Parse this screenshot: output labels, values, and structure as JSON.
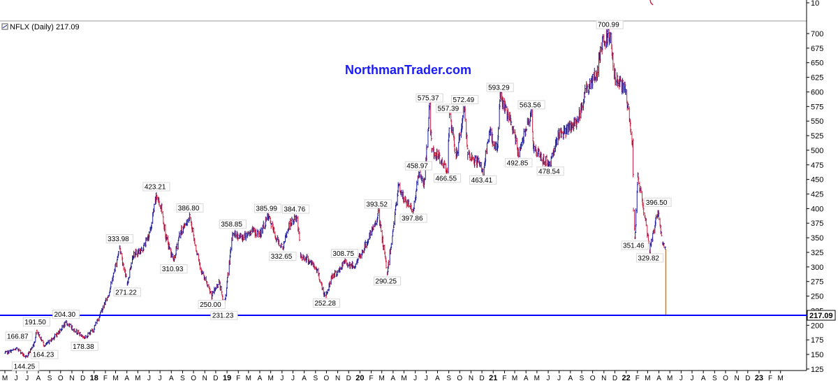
{
  "header": {
    "symbol_label": "NFLX (Daily) 217.09",
    "watermark": "NorthmanTrader.com",
    "upper_panel_tick": "10"
  },
  "colors": {
    "up": "#1a1a99",
    "down": "#cc2244",
    "support_line": "#0000ff",
    "volume_spike": "#e07a00",
    "axis": "#000000",
    "grid": "#f2f2f2"
  },
  "chart_data": {
    "type": "line",
    "title": "NFLX (Daily) 217.09",
    "xlabel": "",
    "ylabel": "",
    "x_range": [
      "2017-05-01",
      "2023-04-30"
    ],
    "ylim": [
      125,
      712
    ],
    "grid": false,
    "last_price": 217.09,
    "horizontal_line": 217.09,
    "y_ticks": [
      125,
      150,
      175,
      200,
      225,
      250,
      275,
      300,
      325,
      350,
      375,
      400,
      425,
      450,
      475,
      500,
      525,
      550,
      575,
      600,
      625,
      650,
      675,
      700
    ],
    "x_ticks": [
      {
        "date": "2017-05-01",
        "label": "M"
      },
      {
        "date": "2017-06-01",
        "label": "J"
      },
      {
        "date": "2017-07-01",
        "label": "J"
      },
      {
        "date": "2017-08-01",
        "label": "A"
      },
      {
        "date": "2017-09-01",
        "label": "S"
      },
      {
        "date": "2017-10-01",
        "label": "O"
      },
      {
        "date": "2017-11-01",
        "label": "N"
      },
      {
        "date": "2017-12-01",
        "label": "D"
      },
      {
        "date": "2018-01-01",
        "label": "18",
        "year": true
      },
      {
        "date": "2018-02-01",
        "label": "F"
      },
      {
        "date": "2018-03-01",
        "label": "M"
      },
      {
        "date": "2018-04-01",
        "label": "A"
      },
      {
        "date": "2018-05-01",
        "label": "M"
      },
      {
        "date": "2018-06-01",
        "label": "J"
      },
      {
        "date": "2018-07-01",
        "label": "J"
      },
      {
        "date": "2018-08-01",
        "label": "A"
      },
      {
        "date": "2018-09-01",
        "label": "S"
      },
      {
        "date": "2018-10-01",
        "label": "O"
      },
      {
        "date": "2018-11-01",
        "label": "N"
      },
      {
        "date": "2018-12-01",
        "label": "D"
      },
      {
        "date": "2019-01-01",
        "label": "19",
        "year": true
      },
      {
        "date": "2019-02-01",
        "label": "F"
      },
      {
        "date": "2019-03-01",
        "label": "M"
      },
      {
        "date": "2019-04-01",
        "label": "A"
      },
      {
        "date": "2019-05-01",
        "label": "M"
      },
      {
        "date": "2019-06-01",
        "label": "J"
      },
      {
        "date": "2019-07-01",
        "label": "J"
      },
      {
        "date": "2019-08-01",
        "label": "A"
      },
      {
        "date": "2019-09-01",
        "label": "S"
      },
      {
        "date": "2019-10-01",
        "label": "O"
      },
      {
        "date": "2019-11-01",
        "label": "N"
      },
      {
        "date": "2019-12-01",
        "label": "D"
      },
      {
        "date": "2020-01-01",
        "label": "20",
        "year": true
      },
      {
        "date": "2020-02-01",
        "label": "F"
      },
      {
        "date": "2020-03-01",
        "label": "M"
      },
      {
        "date": "2020-04-01",
        "label": "A"
      },
      {
        "date": "2020-05-01",
        "label": "M"
      },
      {
        "date": "2020-06-01",
        "label": "J"
      },
      {
        "date": "2020-07-01",
        "label": "J"
      },
      {
        "date": "2020-08-01",
        "label": "A"
      },
      {
        "date": "2020-09-01",
        "label": "S"
      },
      {
        "date": "2020-10-01",
        "label": "O"
      },
      {
        "date": "2020-11-01",
        "label": "N"
      },
      {
        "date": "2020-12-01",
        "label": "D"
      },
      {
        "date": "2021-01-01",
        "label": "21",
        "year": true
      },
      {
        "date": "2021-02-01",
        "label": "F"
      },
      {
        "date": "2021-03-01",
        "label": "M"
      },
      {
        "date": "2021-04-01",
        "label": "A"
      },
      {
        "date": "2021-05-01",
        "label": "M"
      },
      {
        "date": "2021-06-01",
        "label": "J"
      },
      {
        "date": "2021-07-01",
        "label": "J"
      },
      {
        "date": "2021-08-01",
        "label": "A"
      },
      {
        "date": "2021-09-01",
        "label": "S"
      },
      {
        "date": "2021-10-01",
        "label": "O"
      },
      {
        "date": "2021-11-01",
        "label": "N"
      },
      {
        "date": "2021-12-01",
        "label": "D"
      },
      {
        "date": "2022-01-01",
        "label": "22",
        "year": true
      },
      {
        "date": "2022-02-01",
        "label": "F"
      },
      {
        "date": "2022-03-01",
        "label": "M"
      },
      {
        "date": "2022-04-01",
        "label": "A"
      },
      {
        "date": "2022-05-01",
        "label": "M"
      },
      {
        "date": "2022-06-01",
        "label": "J"
      },
      {
        "date": "2022-07-01",
        "label": "J"
      },
      {
        "date": "2022-08-01",
        "label": "A"
      },
      {
        "date": "2022-09-01",
        "label": "S"
      },
      {
        "date": "2022-10-01",
        "label": "O"
      },
      {
        "date": "2022-11-01",
        "label": "N"
      },
      {
        "date": "2022-12-01",
        "label": "D"
      },
      {
        "date": "2023-01-01",
        "label": "23",
        "year": true
      },
      {
        "date": "2023-02-01",
        "label": "F"
      },
      {
        "date": "2023-03-01",
        "label": "M"
      }
    ],
    "series": [
      {
        "points": [
          [
            "2017-05-01",
            152
          ],
          [
            "2017-06-05",
            160
          ],
          [
            "2017-06-27",
            144.25
          ],
          [
            "2017-07-19",
            166.87
          ],
          [
            "2017-07-27",
            191.5
          ],
          [
            "2017-08-18",
            164.23
          ],
          [
            "2017-09-20",
            184
          ],
          [
            "2017-10-16",
            204.3
          ],
          [
            "2017-10-31",
            196
          ],
          [
            "2017-12-06",
            178.38
          ],
          [
            "2017-12-29",
            192
          ],
          [
            "2018-01-23",
            227
          ],
          [
            "2018-02-08",
            250
          ],
          [
            "2018-02-20",
            278
          ],
          [
            "2018-03-12",
            333.98
          ],
          [
            "2018-04-02",
            271.22
          ],
          [
            "2018-04-17",
            320
          ],
          [
            "2018-05-14",
            330
          ],
          [
            "2018-06-04",
            360
          ],
          [
            "2018-06-21",
            423.21
          ],
          [
            "2018-07-05",
            400
          ],
          [
            "2018-07-17",
            350
          ],
          [
            "2018-08-02",
            320
          ],
          [
            "2018-08-08",
            310.93
          ],
          [
            "2018-08-23",
            355
          ],
          [
            "2018-09-21",
            386.8
          ],
          [
            "2018-10-05",
            340
          ],
          [
            "2018-10-24",
            290
          ],
          [
            "2018-11-20",
            250
          ],
          [
            "2018-12-10",
            275
          ],
          [
            "2018-12-24",
            231.23
          ],
          [
            "2019-01-17",
            358.85
          ],
          [
            "2019-02-10",
            350
          ],
          [
            "2019-03-10",
            362
          ],
          [
            "2019-04-01",
            355
          ],
          [
            "2019-04-23",
            385.99
          ],
          [
            "2019-05-03",
            372
          ],
          [
            "2019-05-15",
            350
          ],
          [
            "2019-06-03",
            332.65
          ],
          [
            "2019-06-20",
            370
          ],
          [
            "2019-07-09",
            384.76
          ],
          [
            "2019-07-17",
            365
          ],
          [
            "2019-07-22",
            318
          ],
          [
            "2019-08-08",
            315
          ],
          [
            "2019-09-06",
            294
          ],
          [
            "2019-09-24",
            254
          ],
          [
            "2019-10-01",
            252.28
          ],
          [
            "2019-10-16",
            285
          ],
          [
            "2019-11-01",
            290
          ],
          [
            "2019-11-20",
            308.75
          ],
          [
            "2019-12-16",
            300
          ],
          [
            "2020-01-17",
            338
          ],
          [
            "2020-02-10",
            370
          ],
          [
            "2020-02-20",
            393.52
          ],
          [
            "2020-03-16",
            290.25
          ],
          [
            "2020-04-02",
            370
          ],
          [
            "2020-04-16",
            440
          ],
          [
            "2020-05-01",
            415
          ],
          [
            "2020-05-27",
            397.86
          ],
          [
            "2020-06-10",
            458.97
          ],
          [
            "2020-06-26",
            443
          ],
          [
            "2020-07-10",
            575.37
          ],
          [
            "2020-07-16",
            500
          ],
          [
            "2020-08-01",
            490
          ],
          [
            "2020-08-28",
            466.55
          ],
          [
            "2020-09-03",
            557.39
          ],
          [
            "2020-09-21",
            490
          ],
          [
            "2020-10-15",
            572.49
          ],
          [
            "2020-10-23",
            488
          ],
          [
            "2020-11-20",
            480
          ],
          [
            "2020-12-04",
            463.41
          ],
          [
            "2020-12-22",
            530
          ],
          [
            "2021-01-12",
            500
          ],
          [
            "2021-01-20",
            593.29
          ],
          [
            "2021-02-22",
            540
          ],
          [
            "2021-03-12",
            492.85
          ],
          [
            "2021-04-05",
            550
          ],
          [
            "2021-04-16",
            563.56
          ],
          [
            "2021-04-21",
            508
          ],
          [
            "2021-05-12",
            486
          ],
          [
            "2021-06-07",
            478.54
          ],
          [
            "2021-06-30",
            530
          ],
          [
            "2021-07-20",
            532
          ],
          [
            "2021-08-20",
            550
          ],
          [
            "2021-09-10",
            600
          ],
          [
            "2021-10-12",
            630
          ],
          [
            "2021-10-25",
            680
          ],
          [
            "2021-11-17",
            700.99
          ],
          [
            "2021-12-03",
            618
          ],
          [
            "2021-12-15",
            615
          ],
          [
            "2021-12-30",
            602
          ],
          [
            "2022-01-19",
            510
          ],
          [
            "2022-01-21",
            397
          ],
          [
            "2022-01-25",
            351.46
          ],
          [
            "2022-02-02",
            457
          ],
          [
            "2022-02-23",
            380
          ],
          [
            "2022-03-07",
            329.82
          ],
          [
            "2022-03-29",
            396.5
          ],
          [
            "2022-04-11",
            340
          ],
          [
            "2022-04-19",
            331
          ],
          [
            "2022-04-20",
            217.09
          ]
        ]
      }
    ],
    "annotations": [
      {
        "label": "700.99",
        "date": "2021-11-17",
        "value": 700.99,
        "pos": "above"
      },
      {
        "label": "593.29",
        "date": "2021-01-20",
        "value": 593.29,
        "pos": "above"
      },
      {
        "label": "575.37",
        "date": "2020-07-10",
        "value": 575.37,
        "pos": "above"
      },
      {
        "label": "572.49",
        "date": "2020-10-15",
        "value": 572.49,
        "pos": "above"
      },
      {
        "label": "557.39",
        "date": "2020-09-03",
        "value": 557.39,
        "pos": "above"
      },
      {
        "label": "563.56",
        "date": "2021-04-16",
        "value": 563.56,
        "pos": "above"
      },
      {
        "label": "492.85",
        "date": "2021-03-12",
        "value": 492.85,
        "pos": "below"
      },
      {
        "label": "478.54",
        "date": "2021-06-07",
        "value": 478.54,
        "pos": "below"
      },
      {
        "label": "466.55",
        "date": "2020-08-28",
        "value": 466.55,
        "pos": "below"
      },
      {
        "label": "463.41",
        "date": "2020-12-04",
        "value": 463.41,
        "pos": "below"
      },
      {
        "label": "458.97",
        "date": "2020-06-10",
        "value": 458.97,
        "pos": "above"
      },
      {
        "label": "423.21",
        "date": "2018-06-21",
        "value": 423.21,
        "pos": "above"
      },
      {
        "label": "396.50",
        "date": "2022-03-29",
        "value": 396.5,
        "pos": "above"
      },
      {
        "label": "397.86",
        "date": "2020-05-27",
        "value": 397.86,
        "pos": "below"
      },
      {
        "label": "393.52",
        "date": "2020-02-20",
        "value": 393.52,
        "pos": "above"
      },
      {
        "label": "386.80",
        "date": "2018-09-21",
        "value": 386.8,
        "pos": "above"
      },
      {
        "label": "385.99",
        "date": "2019-04-23",
        "value": 385.99,
        "pos": "above"
      },
      {
        "label": "384.76",
        "date": "2019-07-09",
        "value": 384.76,
        "pos": "above"
      },
      {
        "label": "358.85",
        "date": "2019-01-17",
        "value": 358.85,
        "pos": "above"
      },
      {
        "label": "351.46",
        "date": "2022-01-25",
        "value": 351.46,
        "pos": "below"
      },
      {
        "label": "333.98",
        "date": "2018-03-12",
        "value": 333.98,
        "pos": "above"
      },
      {
        "label": "332.65",
        "date": "2019-06-03",
        "value": 332.65,
        "pos": "below"
      },
      {
        "label": "329.82",
        "date": "2022-03-07",
        "value": 329.82,
        "pos": "below"
      },
      {
        "label": "310.93",
        "date": "2018-08-08",
        "value": 310.93,
        "pos": "below"
      },
      {
        "label": "308.75",
        "date": "2019-11-20",
        "value": 308.75,
        "pos": "above"
      },
      {
        "label": "290.25",
        "date": "2020-03-16",
        "value": 290.25,
        "pos": "below"
      },
      {
        "label": "271.22",
        "date": "2018-04-02",
        "value": 271.22,
        "pos": "below"
      },
      {
        "label": "252.28",
        "date": "2019-10-01",
        "value": 252.28,
        "pos": "below"
      },
      {
        "label": "250.00",
        "date": "2018-11-20",
        "value": 250.0,
        "pos": "below"
      },
      {
        "label": "231.23",
        "date": "2018-12-24",
        "value": 231.23,
        "pos": "below"
      },
      {
        "label": "204.30",
        "date": "2017-10-16",
        "value": 204.3,
        "pos": "above"
      },
      {
        "label": "191.50",
        "date": "2017-07-27",
        "value": 191.5,
        "pos": "above"
      },
      {
        "label": "178.38",
        "date": "2017-12-06",
        "value": 178.38,
        "pos": "below"
      },
      {
        "label": "166.87",
        "date": "2017-07-19",
        "value": 166.87,
        "pos": "above-left"
      },
      {
        "label": "164.23",
        "date": "2017-08-18",
        "value": 164.23,
        "pos": "below"
      },
      {
        "label": "144.25",
        "date": "2017-06-27",
        "value": 144.25,
        "pos": "below"
      }
    ]
  }
}
